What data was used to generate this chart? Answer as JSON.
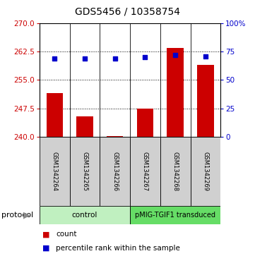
{
  "title": "GDS5456 / 10358754",
  "samples": [
    "GSM1342264",
    "GSM1342265",
    "GSM1342266",
    "GSM1342267",
    "GSM1342268",
    "GSM1342269"
  ],
  "bar_values": [
    251.5,
    245.5,
    240.3,
    247.5,
    263.5,
    259.0
  ],
  "percentile_values": [
    69,
    69,
    69,
    70,
    72,
    71
  ],
  "ymin": 240,
  "ymax": 270,
  "yticks_left": [
    240,
    247.5,
    255,
    262.5,
    270
  ],
  "yticks_right": [
    0,
    25,
    50,
    75,
    100
  ],
  "bar_color": "#cc0000",
  "dot_color": "#0000cc",
  "baseline": 240,
  "title_fontsize": 10,
  "tick_fontsize": 7.5,
  "sample_fontsize": 6,
  "legend_fontsize": 7.5,
  "protocol_fontsize": 7.5,
  "bg_label": "#d0d0d0",
  "bg_control": "#b8f0b8",
  "bg_transduced": "#55cc55",
  "legend_count": "count",
  "legend_pct": "percentile rank within the sample"
}
